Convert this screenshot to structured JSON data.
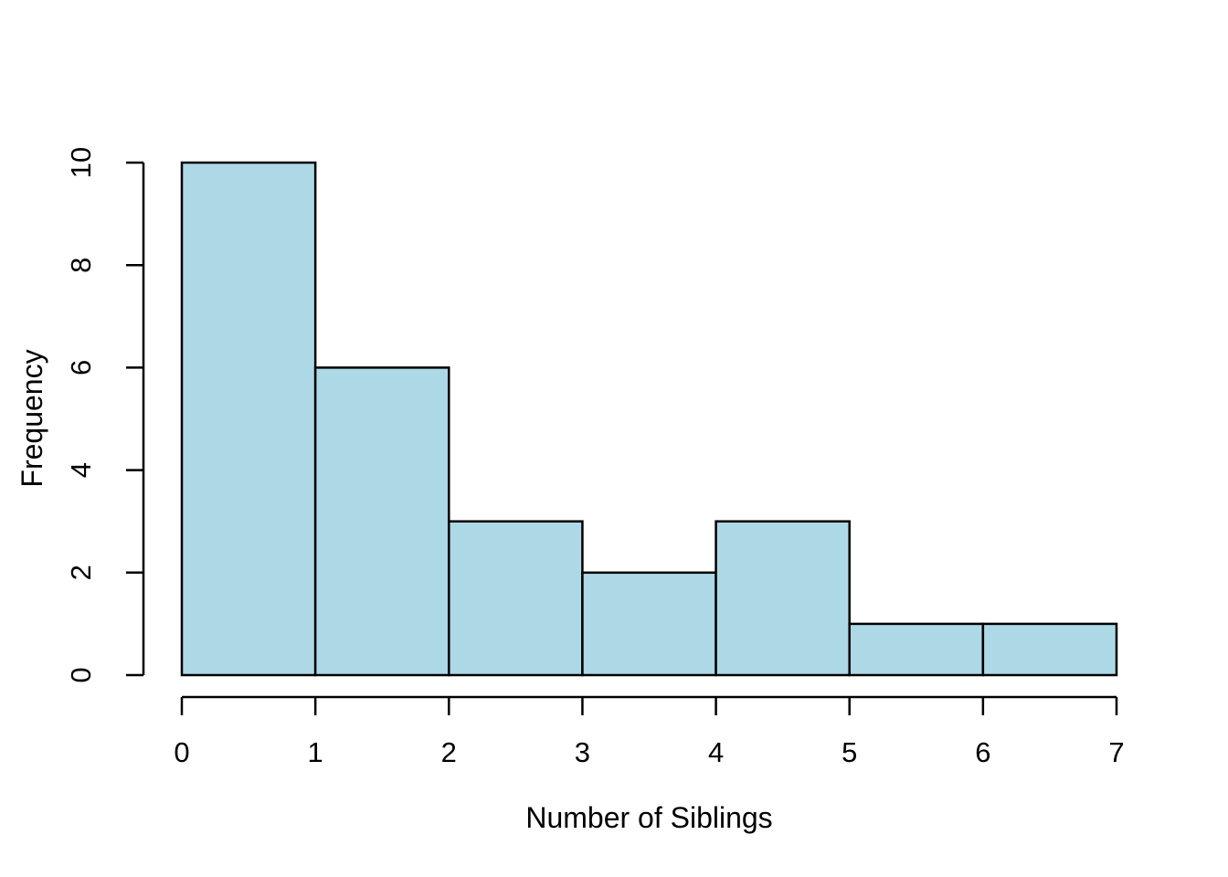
{
  "chart_data": {
    "type": "bar",
    "subtype": "histogram",
    "xlabel": "Number of Siblings",
    "ylabel": "Frequency",
    "bin_edges": [
      0,
      1,
      2,
      3,
      4,
      5,
      6,
      7
    ],
    "values": [
      10,
      6,
      3,
      2,
      3,
      1,
      1
    ],
    "xlim": [
      0,
      7
    ],
    "ylim": [
      0,
      10
    ],
    "x_ticks": [
      "0",
      "1",
      "2",
      "3",
      "4",
      "5",
      "6",
      "7"
    ],
    "x_tick_values": [
      0,
      1,
      2,
      3,
      4,
      5,
      6,
      7
    ],
    "y_ticks": [
      "0",
      "2",
      "4",
      "6",
      "8",
      "10"
    ],
    "y_tick_values": [
      0,
      2,
      4,
      6,
      8,
      10
    ],
    "grid": false,
    "legend_position": "none",
    "bar_fill": "#ADD8E6",
    "bar_border": "#000000",
    "axis_color": "#000000",
    "text_color": "#000000",
    "background": "#FFFFFF"
  }
}
